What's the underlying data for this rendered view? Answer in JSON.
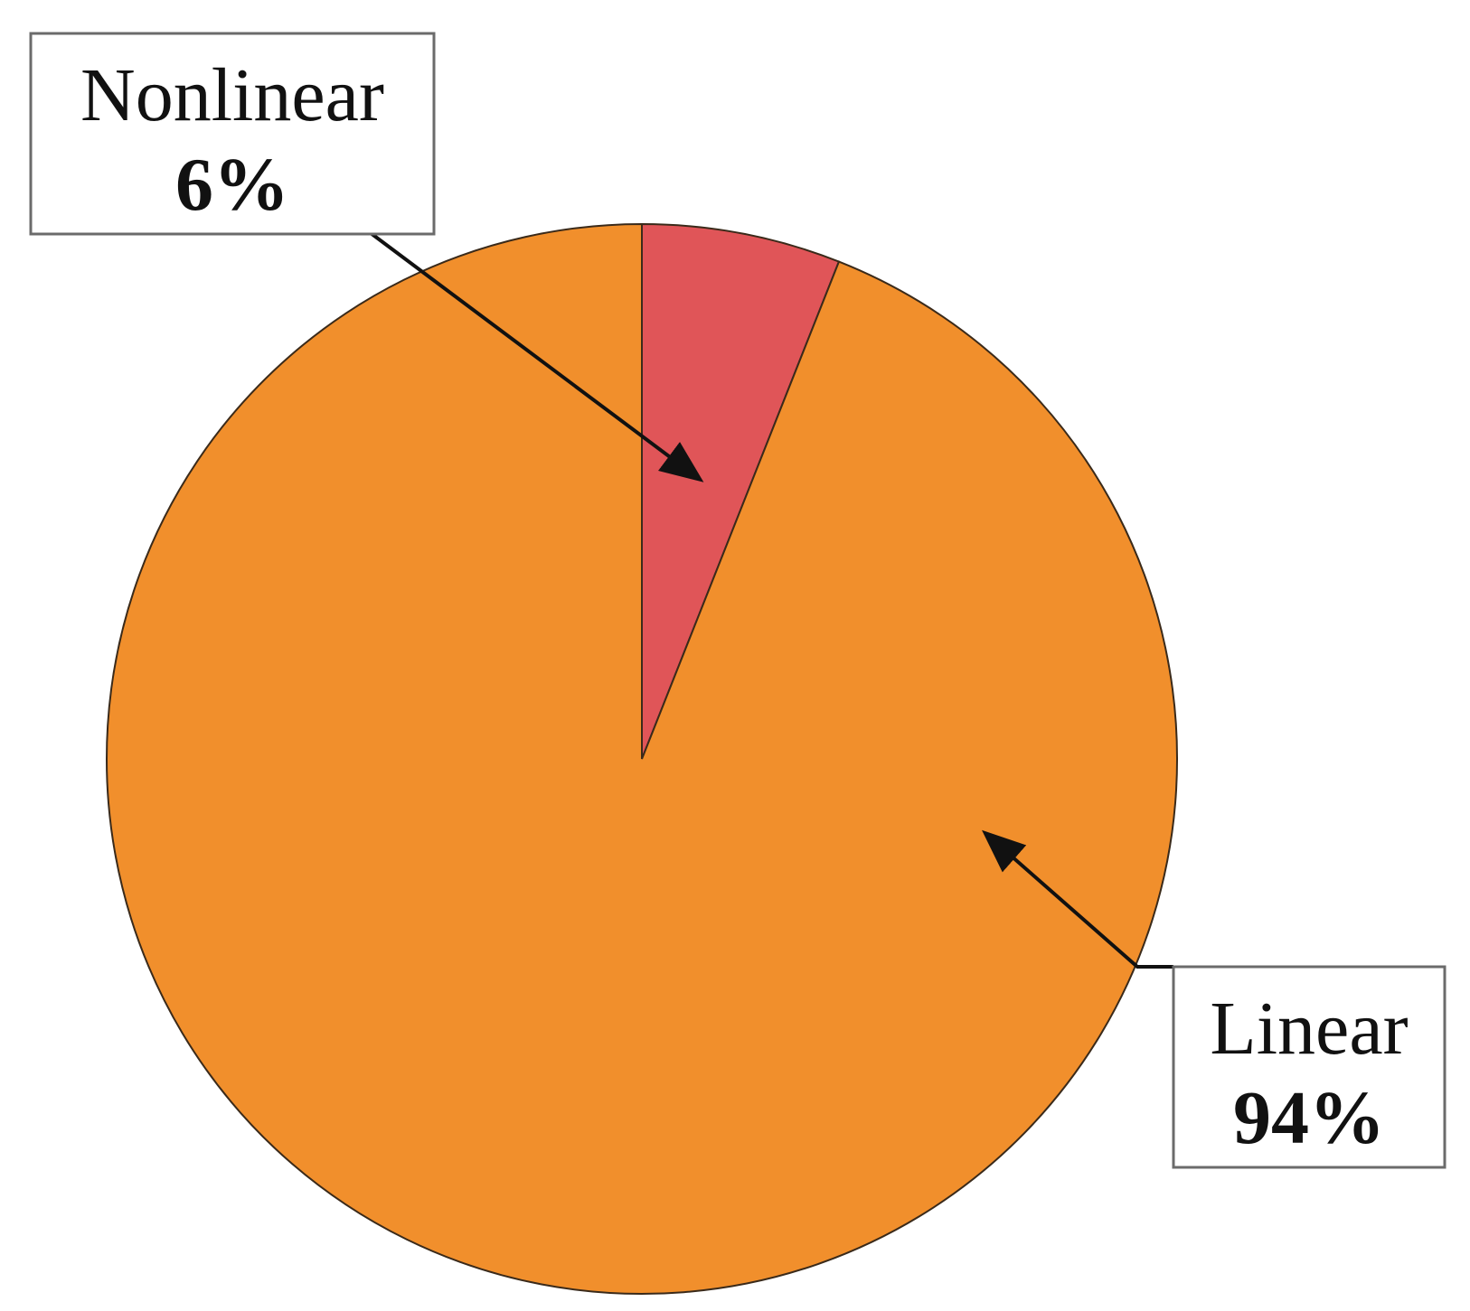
{
  "chart_data": {
    "type": "pie",
    "slices": [
      {
        "label": "Nonlinear",
        "value": 6,
        "value_label": "6%",
        "color": "#e05558"
      },
      {
        "label": "Linear",
        "value": 94,
        "value_label": "94%",
        "color": "#f18f2c"
      }
    ],
    "start_angle": "12 o'clock",
    "direction": "clockwise",
    "legend": "none",
    "labels": "boxed callouts with arrows",
    "title": ""
  }
}
